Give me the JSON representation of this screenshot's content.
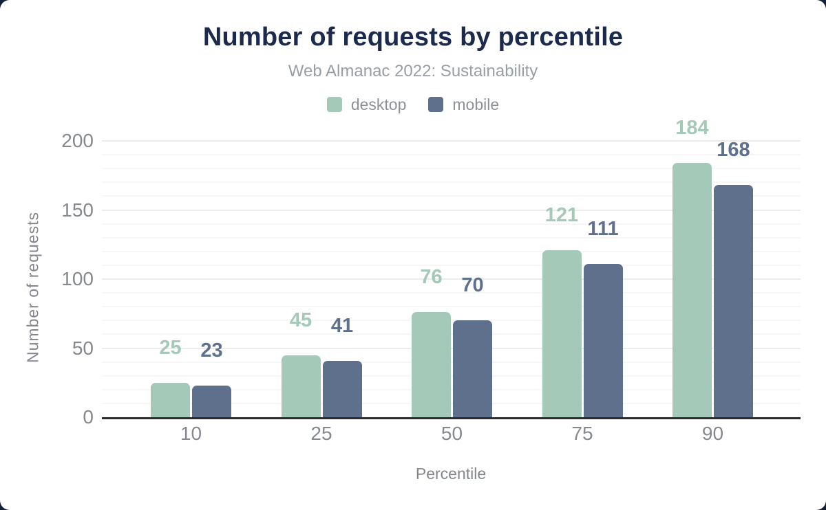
{
  "page": {
    "background_color": "#15203a",
    "card_color": "#ffffff"
  },
  "header": {
    "title": "Number of requests by percentile",
    "subtitle": "Web Almanac 2022: Sustainability"
  },
  "legend": {
    "position": "top",
    "items": [
      {
        "label": "desktop",
        "color": "#a5c9b8"
      },
      {
        "label": "mobile",
        "color": "#5f708c"
      }
    ]
  },
  "chart_data": {
    "type": "bar",
    "title": "Number of requests by percentile",
    "subtitle": "Web Almanac 2022: Sustainability",
    "categories": [
      "10",
      "25",
      "50",
      "75",
      "90"
    ],
    "series": [
      {
        "name": "desktop",
        "color": "#a5c9b8",
        "values": [
          25,
          45,
          76,
          121,
          184
        ]
      },
      {
        "name": "mobile",
        "color": "#5f708c",
        "values": [
          23,
          41,
          70,
          111,
          168
        ]
      }
    ],
    "xlabel": "Percentile",
    "ylabel": "Number of requests",
    "ylim": [
      0,
      200
    ],
    "yticks": [
      0,
      50,
      100,
      150,
      200
    ],
    "grid": "horizontal minor lines every 10 units, major every 50",
    "legend_position": "top",
    "value_labels": true,
    "colors": {
      "title": "#1b2a4d",
      "subtitle_text": "#989ea5",
      "axis_text": "#85898e",
      "axis_line": "#2d2d2d",
      "grid_minor": "#f6f6f6",
      "grid_major": "#ececec"
    }
  }
}
